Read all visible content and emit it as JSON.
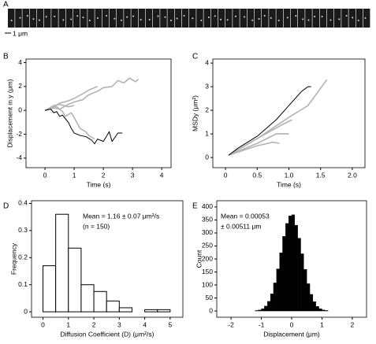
{
  "panel_a": {
    "label": "A",
    "scale_bar": "1 μm"
  },
  "chart_data": [
    {
      "type": "line",
      "panel": "B",
      "ylabel": "Displacement in y (μm)",
      "xlabel": "Time (s)",
      "xlim": [
        -0.65,
        4.32
      ],
      "xticks": [
        0,
        1,
        2,
        3,
        4
      ],
      "ylim": [
        -4.8,
        4.3
      ],
      "yticks": [
        -4,
        -2,
        0,
        2,
        4
      ],
      "series": [
        {
          "color": "#b3b3b3",
          "x": [
            0,
            0.3,
            0.5,
            0.8,
            1,
            1.3,
            1.5,
            1.8,
            2,
            2.3,
            2.5,
            2.7,
            2.9,
            3.1,
            3.2
          ],
          "values": [
            0,
            0.2,
            0.1,
            0.5,
            0.7,
            0.9,
            1.3,
            1.6,
            1.9,
            2.0,
            2.5,
            2.3,
            2.7,
            2.4,
            2.6
          ]
        },
        {
          "color": "#b3b3b3",
          "x": [
            0,
            0.3,
            0.5,
            0.8,
            1,
            1.3,
            1.5,
            1.8
          ],
          "values": [
            0,
            0.3,
            0.6,
            0.8,
            1.0,
            1.4,
            1.7,
            2.0
          ]
        },
        {
          "color": "#b3b3b3",
          "x": [
            0,
            0.2,
            0.4,
            0.6,
            0.7,
            0.9,
            1.0,
            1.2,
            1.4,
            1.5,
            1.7
          ],
          "values": [
            0,
            0.2,
            0.3,
            -0.1,
            -0.5,
            -0.2,
            -0.6,
            -1.5,
            -1.8,
            -2.1,
            -2.4
          ]
        },
        {
          "color": "#b3b3b3",
          "x": [
            0,
            0.3,
            0.5,
            0.8,
            1.0
          ],
          "values": [
            0,
            0.4,
            0.5,
            0.3,
            0.4
          ]
        },
        {
          "color": "#000000",
          "x": [
            0,
            0.2,
            0.3,
            0.4,
            0.5,
            0.6,
            0.8,
            0.9,
            1.0,
            1.2,
            1.4,
            1.6,
            1.7,
            1.8,
            2.0,
            2.2,
            2.3,
            2.5,
            2.65
          ],
          "values": [
            0,
            0.1,
            -0.2,
            -0.1,
            -0.5,
            -0.4,
            -1.0,
            -1.5,
            -1.9,
            -2.1,
            -2.2,
            -2.5,
            -2.8,
            -2.4,
            -2.6,
            -1.8,
            -2.6,
            -1.9,
            -1.9
          ]
        }
      ]
    },
    {
      "type": "line",
      "panel": "C",
      "ylabel": "MSDy (μm²)",
      "xlabel": "Time (s)",
      "xlim": [
        -0.2,
        2.2
      ],
      "xticks": [
        0,
        0.5,
        {
          "value": 1,
          "label": "1.0"
        },
        1.5,
        {
          "value": 2,
          "label": "2.0"
        }
      ],
      "ylim": [
        -0.43,
        4.17
      ],
      "yticks": [
        0,
        1,
        2,
        3,
        4
      ],
      "series": [
        {
          "color": "#b3b3b3",
          "x": [
            0.05,
            0.5,
            1.0,
            1.3,
            1.6
          ],
          "values": [
            0.1,
            0.8,
            1.7,
            2.2,
            3.3
          ]
        },
        {
          "color": "#b3b3b3",
          "x": [
            0.05,
            0.5,
            0.9,
            1.05
          ],
          "values": [
            0.1,
            0.8,
            1.4,
            1.6
          ]
        },
        {
          "color": "#b3b3b3",
          "x": [
            0.05,
            0.5,
            0.8,
            1.0
          ],
          "values": [
            0.1,
            0.6,
            1.0,
            1.0
          ]
        },
        {
          "color": "#b3b3b3",
          "x": [
            0.05,
            0.5,
            0.75,
            0.85
          ],
          "values": [
            0.1,
            0.5,
            0.65,
            0.6
          ]
        },
        {
          "color": "#000000",
          "x": [
            0.05,
            0.2,
            0.5,
            0.8,
            1.0,
            1.2,
            1.3,
            1.35
          ],
          "values": [
            0.1,
            0.4,
            0.9,
            1.6,
            2.2,
            2.8,
            3.0,
            3.0
          ]
        }
      ]
    },
    {
      "type": "histogram",
      "panel": "D",
      "ylabel": "Frequency",
      "xlabel": "Diffusion Coefficient (D) (μm²/s)",
      "annotations": [
        "Mean = 1.16 ± 0.07 μm²/s",
        "(n = 150)"
      ],
      "xlim": [
        -0.45,
        5.5
      ],
      "xticks": [
        0,
        1,
        2,
        3,
        4,
        5
      ],
      "ylim": [
        -0.02,
        0.41
      ],
      "yticks": [
        0,
        0.1,
        0.2,
        0.3,
        0.4
      ],
      "fill": "#ffffff",
      "stroke": "#000000",
      "bins": [
        0,
        0.5,
        1,
        1.5,
        2,
        2.5,
        3,
        3.5,
        4,
        4.5,
        5
      ],
      "values": [
        0.17,
        0.36,
        0.235,
        0.1,
        0.075,
        0.04,
        0.015,
        0,
        0.008,
        0.008
      ]
    },
    {
      "type": "histogram",
      "panel": "E",
      "ylabel": "Count",
      "xlabel": "Displacement (μm)",
      "annotations": [
        "Mean = 0.00053",
        "± 0.00511 μm"
      ],
      "xlim": [
        -2.47,
        2.47
      ],
      "xticks": [
        -2,
        -1,
        0,
        1,
        2
      ],
      "ylim": [
        -24,
        424
      ],
      "yticks": [
        0,
        50,
        100,
        150,
        200,
        250,
        300,
        350,
        400
      ],
      "fill": "#000000",
      "stroke": "#000000",
      "bins": [
        -1.2,
        -1.1,
        -1.0,
        -0.9,
        -0.8,
        -0.7,
        -0.6,
        -0.5,
        -0.4,
        -0.3,
        -0.2,
        -0.1,
        0,
        0.1,
        0.2,
        0.3,
        0.4,
        0.5,
        0.6,
        0.7,
        0.8,
        0.9,
        1.0,
        1.1,
        1.2
      ],
      "values": [
        2,
        4,
        9,
        19,
        37,
        66,
        108,
        162,
        224,
        287,
        337,
        366,
        370,
        330,
        280,
        220,
        160,
        105,
        64,
        36,
        18,
        9,
        4,
        2
      ]
    }
  ]
}
